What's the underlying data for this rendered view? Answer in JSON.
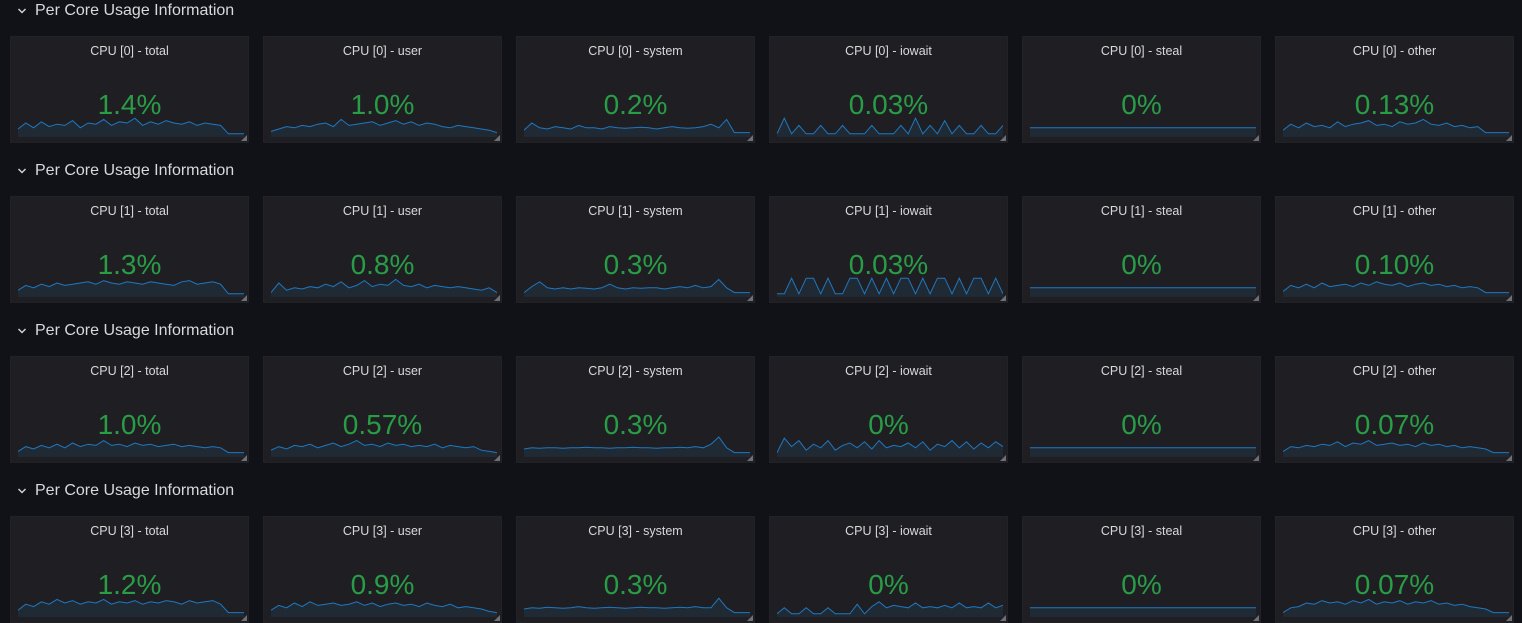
{
  "theme": {
    "background": "#111217",
    "panel_bg": "#1f1f23",
    "value_color": "#299c46",
    "spark_color": "#1f78c1",
    "text_color": "#d8d9da"
  },
  "icons": {
    "row_toggle": "chevron-down-icon",
    "panel_resize": "resize-handle-icon"
  },
  "rows": [
    {
      "title": "Per Core Usage Information",
      "panels": [
        {
          "title": "CPU [0] - total",
          "value": "1.4%",
          "spark": [
            0.25,
            0.5,
            0.3,
            0.55,
            0.35,
            0.45,
            0.4,
            0.6,
            0.3,
            0.5,
            0.45,
            0.65,
            0.4,
            0.55,
            0.5,
            0.7,
            0.4,
            0.55,
            0.45,
            0.6,
            0.5,
            0.45,
            0.55,
            0.4,
            0.5,
            0.45,
            0.4,
            0.05,
            0.05,
            0.05
          ]
        },
        {
          "title": "CPU [0] - user",
          "value": "1.0%",
          "spark": [
            0.15,
            0.25,
            0.35,
            0.3,
            0.4,
            0.35,
            0.45,
            0.5,
            0.35,
            0.65,
            0.4,
            0.45,
            0.5,
            0.55,
            0.4,
            0.5,
            0.6,
            0.45,
            0.55,
            0.4,
            0.5,
            0.45,
            0.35,
            0.3,
            0.4,
            0.35,
            0.3,
            0.25,
            0.2,
            0.1
          ]
        },
        {
          "title": "CPU [0] - system",
          "value": "0.2%",
          "spark": [
            0.2,
            0.5,
            0.3,
            0.25,
            0.35,
            0.3,
            0.25,
            0.4,
            0.3,
            0.3,
            0.25,
            0.35,
            0.3,
            0.28,
            0.3,
            0.32,
            0.3,
            0.25,
            0.3,
            0.35,
            0.3,
            0.28,
            0.3,
            0.35,
            0.45,
            0.3,
            0.65,
            0.1,
            0.1,
            0.1
          ]
        },
        {
          "title": "CPU [0] - iowait",
          "value": "0.03%",
          "spark": [
            0.05,
            0.7,
            0.05,
            0.4,
            0.05,
            0.05,
            0.4,
            0.05,
            0.05,
            0.4,
            0.05,
            0.05,
            0.05,
            0.4,
            0.05,
            0.05,
            0.05,
            0.4,
            0.05,
            0.7,
            0.05,
            0.4,
            0.05,
            0.6,
            0.05,
            0.4,
            0.05,
            0.05,
            0.4,
            0.05,
            0.05,
            0.4
          ]
        },
        {
          "title": "CPU [0] - steal",
          "value": "0%",
          "spark": [
            0.3,
            0.3,
            0.3,
            0.3,
            0.3,
            0.3,
            0.3,
            0.3,
            0.3,
            0.3
          ]
        },
        {
          "title": "CPU [0] - other",
          "value": "0.13%",
          "spark": [
            0.2,
            0.45,
            0.3,
            0.5,
            0.35,
            0.4,
            0.3,
            0.55,
            0.35,
            0.45,
            0.5,
            0.6,
            0.4,
            0.45,
            0.35,
            0.55,
            0.45,
            0.5,
            0.65,
            0.45,
            0.4,
            0.5,
            0.35,
            0.4,
            0.3,
            0.35,
            0.1,
            0.1,
            0.1,
            0.1
          ]
        }
      ]
    },
    {
      "title": "Per Core Usage Information",
      "panels": [
        {
          "title": "CPU [1] - total",
          "value": "1.3%",
          "spark": [
            0.2,
            0.4,
            0.3,
            0.45,
            0.35,
            0.5,
            0.4,
            0.45,
            0.5,
            0.55,
            0.45,
            0.6,
            0.5,
            0.45,
            0.55,
            0.5,
            0.45,
            0.55,
            0.5,
            0.45,
            0.4,
            0.55,
            0.6,
            0.45,
            0.5,
            0.55,
            0.45,
            0.05,
            0.05,
            0.05
          ]
        },
        {
          "title": "CPU [1] - user",
          "value": "0.8%",
          "spark": [
            0.1,
            0.5,
            0.2,
            0.3,
            0.25,
            0.35,
            0.3,
            0.45,
            0.35,
            0.55,
            0.3,
            0.4,
            0.6,
            0.35,
            0.45,
            0.4,
            0.65,
            0.4,
            0.35,
            0.45,
            0.3,
            0.4,
            0.35,
            0.3,
            0.35,
            0.3,
            0.25,
            0.2,
            0.3,
            0.1
          ]
        },
        {
          "title": "CPU [1] - system",
          "value": "0.3%",
          "spark": [
            0.1,
            0.35,
            0.55,
            0.3,
            0.25,
            0.3,
            0.25,
            0.3,
            0.28,
            0.25,
            0.3,
            0.45,
            0.3,
            0.25,
            0.3,
            0.28,
            0.3,
            0.3,
            0.25,
            0.3,
            0.35,
            0.3,
            0.4,
            0.3,
            0.35,
            0.65,
            0.3,
            0.1,
            0.1,
            0.1
          ]
        },
        {
          "title": "CPU [1] - iowait",
          "value": "0.03%",
          "spark": [
            0.05,
            0.05,
            0.7,
            0.05,
            0.7,
            0.7,
            0.05,
            0.7,
            0.05,
            0.05,
            0.7,
            0.7,
            0.05,
            0.7,
            0.05,
            0.7,
            0.05,
            0.7,
            0.7,
            0.05,
            0.7,
            0.05,
            0.7,
            0.7,
            0.05,
            0.7,
            0.05,
            0.7,
            0.7,
            0.05,
            0.7,
            0.05
          ]
        },
        {
          "title": "CPU [1] - steal",
          "value": "0%",
          "spark": [
            0.3,
            0.3,
            0.3,
            0.3,
            0.3,
            0.3,
            0.3,
            0.3,
            0.3,
            0.3
          ]
        },
        {
          "title": "CPU [1] - other",
          "value": "0.10%",
          "spark": [
            0.15,
            0.4,
            0.3,
            0.45,
            0.3,
            0.5,
            0.35,
            0.4,
            0.45,
            0.35,
            0.5,
            0.4,
            0.55,
            0.45,
            0.4,
            0.5,
            0.35,
            0.45,
            0.5,
            0.4,
            0.45,
            0.35,
            0.4,
            0.3,
            0.35,
            0.3,
            0.1,
            0.1,
            0.1,
            0.1
          ]
        }
      ]
    },
    {
      "title": "Per Core Usage Information",
      "panels": [
        {
          "title": "CPU [2] - total",
          "value": "1.0%",
          "spark": [
            0.15,
            0.35,
            0.25,
            0.4,
            0.3,
            0.45,
            0.3,
            0.5,
            0.35,
            0.45,
            0.4,
            0.6,
            0.4,
            0.45,
            0.35,
            0.5,
            0.4,
            0.45,
            0.35,
            0.4,
            0.45,
            0.35,
            0.4,
            0.35,
            0.3,
            0.35,
            0.3,
            0.1,
            0.1,
            0.1
          ]
        },
        {
          "title": "CPU [2] - user",
          "value": "0.57%",
          "spark": [
            0.2,
            0.35,
            0.25,
            0.4,
            0.35,
            0.45,
            0.3,
            0.4,
            0.5,
            0.35,
            0.45,
            0.6,
            0.4,
            0.45,
            0.35,
            0.5,
            0.4,
            0.45,
            0.35,
            0.4,
            0.35,
            0.45,
            0.3,
            0.4,
            0.35,
            0.3,
            0.35,
            0.2,
            0.15,
            0.1
          ]
        },
        {
          "title": "CPU [2] - system",
          "value": "0.3%",
          "spark": [
            0.25,
            0.3,
            0.28,
            0.3,
            0.3,
            0.28,
            0.3,
            0.3,
            0.32,
            0.3,
            0.3,
            0.28,
            0.3,
            0.3,
            0.32,
            0.3,
            0.3,
            0.28,
            0.3,
            0.3,
            0.32,
            0.3,
            0.35,
            0.3,
            0.45,
            0.75,
            0.3,
            0.1,
            0.1,
            0.1
          ]
        },
        {
          "title": "CPU [2] - iowait",
          "value": "0%",
          "spark": [
            0.1,
            0.7,
            0.35,
            0.6,
            0.2,
            0.45,
            0.3,
            0.6,
            0.2,
            0.4,
            0.5,
            0.3,
            0.55,
            0.25,
            0.6,
            0.3,
            0.4,
            0.35,
            0.5,
            0.3,
            0.55,
            0.2,
            0.45,
            0.35,
            0.6,
            0.3,
            0.55,
            0.25,
            0.5,
            0.3,
            0.55,
            0.35
          ]
        },
        {
          "title": "CPU [2] - steal",
          "value": "0%",
          "spark": [
            0.3,
            0.3,
            0.3,
            0.3,
            0.3,
            0.3,
            0.3,
            0.3,
            0.3,
            0.3
          ]
        },
        {
          "title": "CPU [2] - other",
          "value": "0.07%",
          "spark": [
            0.15,
            0.35,
            0.3,
            0.4,
            0.35,
            0.45,
            0.4,
            0.55,
            0.35,
            0.5,
            0.45,
            0.6,
            0.4,
            0.45,
            0.5,
            0.4,
            0.45,
            0.35,
            0.5,
            0.4,
            0.45,
            0.35,
            0.4,
            0.3,
            0.35,
            0.3,
            0.25,
            0.1,
            0.1,
            0.1
          ]
        }
      ]
    },
    {
      "title": "Per Core Usage Information",
      "panels": [
        {
          "title": "CPU [3] - total",
          "value": "1.2%",
          "spark": [
            0.2,
            0.45,
            0.35,
            0.55,
            0.45,
            0.65,
            0.5,
            0.6,
            0.45,
            0.55,
            0.5,
            0.65,
            0.45,
            0.55,
            0.5,
            0.6,
            0.45,
            0.55,
            0.5,
            0.6,
            0.55,
            0.45,
            0.6,
            0.5,
            0.55,
            0.6,
            0.45,
            0.1,
            0.1,
            0.1
          ]
        },
        {
          "title": "CPU [3] - user",
          "value": "0.9%",
          "spark": [
            0.2,
            0.4,
            0.3,
            0.5,
            0.35,
            0.55,
            0.4,
            0.45,
            0.5,
            0.4,
            0.45,
            0.55,
            0.4,
            0.5,
            0.35,
            0.45,
            0.5,
            0.4,
            0.45,
            0.35,
            0.5,
            0.4,
            0.35,
            0.45,
            0.3,
            0.35,
            0.3,
            0.25,
            0.15,
            0.1
          ]
        },
        {
          "title": "CPU [3] - system",
          "value": "0.3%",
          "spark": [
            0.25,
            0.3,
            0.28,
            0.32,
            0.3,
            0.28,
            0.3,
            0.35,
            0.3,
            0.28,
            0.3,
            0.32,
            0.3,
            0.28,
            0.3,
            0.32,
            0.3,
            0.3,
            0.28,
            0.3,
            0.32,
            0.3,
            0.35,
            0.3,
            0.3,
            0.7,
            0.3,
            0.1,
            0.1,
            0.1
          ]
        },
        {
          "title": "CPU [3] - iowait",
          "value": "0%",
          "spark": [
            0.05,
            0.3,
            0.05,
            0.05,
            0.3,
            0.05,
            0.05,
            0.3,
            0.05,
            0.05,
            0.05,
            0.45,
            0.05,
            0.35,
            0.55,
            0.3,
            0.4,
            0.35,
            0.3,
            0.5,
            0.3,
            0.35,
            0.3,
            0.4,
            0.3,
            0.5,
            0.3,
            0.35,
            0.3,
            0.5,
            0.3,
            0.4
          ]
        },
        {
          "title": "CPU [3] - steal",
          "value": "0%",
          "spark": [
            0.3,
            0.3,
            0.3,
            0.3,
            0.3,
            0.3,
            0.3,
            0.3,
            0.3,
            0.3
          ]
        },
        {
          "title": "CPU [3] - other",
          "value": "0.07%",
          "spark": [
            0.1,
            0.3,
            0.35,
            0.5,
            0.45,
            0.6,
            0.5,
            0.55,
            0.45,
            0.6,
            0.5,
            0.65,
            0.45,
            0.55,
            0.5,
            0.6,
            0.45,
            0.55,
            0.5,
            0.6,
            0.45,
            0.5,
            0.4,
            0.45,
            0.35,
            0.3,
            0.25,
            0.1,
            0.1,
            0.1
          ]
        }
      ]
    }
  ]
}
